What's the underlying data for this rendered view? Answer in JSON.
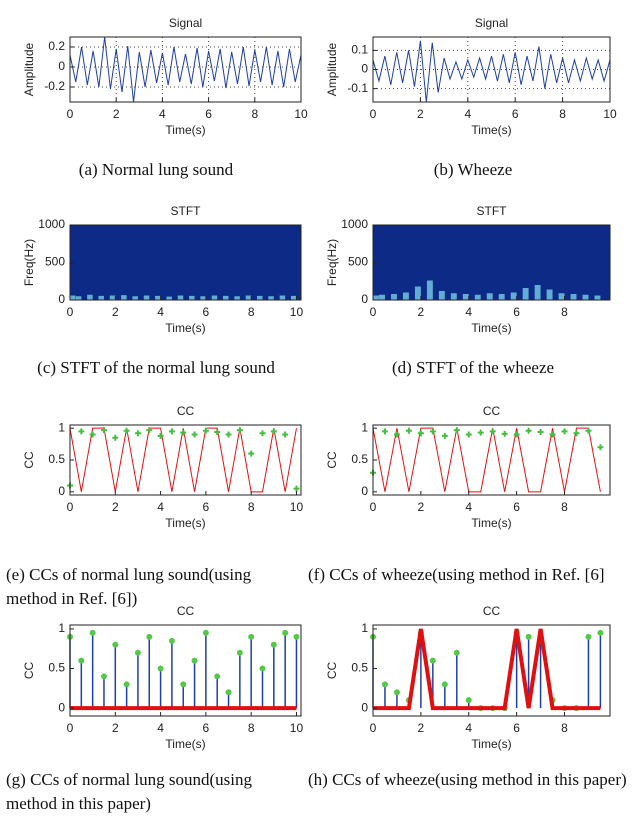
{
  "chart_data": [
    {
      "type": "line",
      "title": "Signal",
      "xlabel": "Time(s)",
      "ylabel": "Amplitude",
      "caption": "(a)  Normal lung sound",
      "x": [
        0,
        0.25,
        0.5,
        0.75,
        1,
        1.25,
        1.5,
        1.75,
        2,
        2.25,
        2.5,
        2.75,
        3,
        3.25,
        3.5,
        3.75,
        4,
        4.25,
        4.5,
        4.75,
        5,
        5.25,
        5.5,
        5.75,
        6,
        6.25,
        6.5,
        6.75,
        7,
        7.25,
        7.5,
        7.75,
        8,
        8.25,
        8.5,
        8.75,
        9,
        9.25,
        9.5,
        9.75,
        10
      ],
      "series": [
        {
          "color": "#1f3fa8",
          "style": "line",
          "values": [
            0.12,
            -0.15,
            0.2,
            -0.18,
            0.16,
            -0.2,
            0.3,
            -0.22,
            0.18,
            -0.25,
            0.21,
            -0.35,
            0.15,
            -0.2,
            0.17,
            -0.16,
            0.14,
            -0.18,
            0.2,
            -0.15,
            0.13,
            -0.17,
            0.19,
            -0.2,
            0.16,
            -0.14,
            0.18,
            -0.21,
            0.15,
            -0.17,
            0.2,
            -0.19,
            0.17,
            -0.15,
            0.2,
            -0.18,
            0.16,
            -0.2,
            0.18,
            -0.15,
            0.12
          ]
        }
      ],
      "xlim": [
        0,
        10
      ],
      "ylim": [
        -0.35,
        0.3
      ],
      "xticks": [
        0,
        2,
        4,
        6,
        8,
        10
      ],
      "yticks": [
        -0.2,
        0,
        0.2
      ],
      "grid": true
    },
    {
      "type": "line",
      "title": "Signal",
      "xlabel": "Time(s)",
      "ylabel": "Amplitude",
      "caption": "(b)  Wheeze",
      "x": [
        0,
        0.25,
        0.5,
        0.75,
        1,
        1.25,
        1.5,
        1.75,
        2,
        2.25,
        2.5,
        2.75,
        3,
        3.25,
        3.5,
        3.75,
        4,
        4.25,
        4.5,
        4.75,
        5,
        5.25,
        5.5,
        5.75,
        6,
        6.25,
        6.5,
        6.75,
        7,
        7.25,
        7.5,
        7.75,
        8,
        8.25,
        8.5,
        8.75,
        9,
        9.25,
        9.5,
        9.75,
        10
      ],
      "series": [
        {
          "color": "#1f3fa8",
          "style": "line",
          "values": [
            0.05,
            -0.06,
            0.07,
            -0.08,
            0.09,
            -0.07,
            0.1,
            -0.09,
            0.15,
            -0.17,
            0.14,
            -0.12,
            0.06,
            -0.05,
            0.04,
            -0.05,
            0.05,
            -0.04,
            0.06,
            -0.05,
            0.07,
            -0.06,
            0.08,
            -0.07,
            0.09,
            -0.08,
            0.07,
            -0.06,
            0.12,
            -0.1,
            0.08,
            -0.07,
            0.06,
            -0.07,
            0.05,
            -0.06,
            0.06,
            -0.05,
            0.05,
            -0.06,
            0.05
          ]
        }
      ],
      "xlim": [
        0,
        10
      ],
      "ylim": [
        -0.17,
        0.17
      ],
      "xticks": [
        0,
        2,
        4,
        6,
        8,
        10
      ],
      "yticks": [
        -0.1,
        0,
        0.1
      ],
      "grid": true
    },
    {
      "type": "spectrogram",
      "title": "STFT",
      "xlabel": "Time(s)",
      "ylabel": "Freq(Hz)",
      "caption": "(c)  STFT of the normal lung sound",
      "x": [
        0,
        0.5,
        1,
        1.5,
        2,
        2.5,
        3,
        3.5,
        4,
        4.5,
        5,
        5.5,
        6,
        6.5,
        7,
        7.5,
        8,
        8.5,
        9,
        9.5,
        10
      ],
      "background": "#0c2a86",
      "color": "#7fd8f0",
      "values": [
        60,
        50,
        70,
        55,
        60,
        65,
        50,
        60,
        55,
        45,
        60,
        55,
        50,
        60,
        55,
        50,
        60,
        55,
        50,
        60,
        55
      ],
      "xlim": [
        0,
        10.2
      ],
      "ylim": [
        0,
        1000
      ],
      "xticks": [
        0,
        2,
        4,
        6,
        8,
        10
      ],
      "yticks": [
        0,
        500,
        1000
      ],
      "grid": false
    },
    {
      "type": "spectrogram",
      "title": "STFT",
      "xlabel": "Time(s)",
      "ylabel": "Freq(Hz)",
      "caption": "(d)  STFT of the wheeze",
      "x": [
        0,
        0.5,
        1,
        1.5,
        2,
        2.5,
        3,
        3.5,
        4,
        4.5,
        5,
        5.5,
        6,
        6.5,
        7,
        7.5,
        8,
        8.5,
        9,
        9.5
      ],
      "background": "#0c2a86",
      "color": "#7fd8f0",
      "values": [
        60,
        70,
        80,
        100,
        180,
        260,
        120,
        90,
        80,
        70,
        90,
        80,
        100,
        160,
        200,
        140,
        90,
        80,
        70,
        60
      ],
      "xlim": [
        0,
        9.9
      ],
      "ylim": [
        0,
        1000
      ],
      "xticks": [
        0,
        2,
        4,
        6,
        8
      ],
      "yticks": [
        0,
        500,
        1000
      ],
      "grid": false
    },
    {
      "type": "line",
      "title": "CC",
      "xlabel": "Time(s)",
      "ylabel": "CC",
      "caption": "(e)  CCs of normal lung sound(using method in Ref.  [6])",
      "x": [
        0,
        0.5,
        1,
        1.5,
        2,
        2.5,
        3,
        3.5,
        4,
        4.5,
        5,
        5.5,
        6,
        6.5,
        7,
        7.5,
        8,
        8.5,
        9,
        9.5,
        10
      ],
      "series": [
        {
          "color": "#e01010",
          "style": "line",
          "values": [
            1,
            0,
            1,
            1,
            0,
            1,
            0,
            1,
            1,
            0,
            1,
            0,
            1,
            1,
            0,
            1,
            0,
            0,
            1,
            0,
            1
          ]
        },
        {
          "color": "#44c040",
          "style": "markers",
          "values": [
            0.1,
            0.95,
            0.9,
            0.97,
            0.85,
            0.96,
            0.92,
            0.97,
            0.88,
            0.95,
            0.93,
            0.9,
            0.96,
            0.94,
            0.9,
            0.97,
            0.6,
            0.92,
            0.95,
            0.9,
            0.05
          ]
        }
      ],
      "xlim": [
        0,
        10.2
      ],
      "ylim": [
        -0.05,
        1.05
      ],
      "xticks": [
        0,
        2,
        4,
        6,
        8,
        10
      ],
      "yticks": [
        0,
        0.5,
        1
      ],
      "grid": false
    },
    {
      "type": "line",
      "title": "CC",
      "xlabel": "Time(s)",
      "ylabel": "CC",
      "caption": "(f)  CCs of wheeze(using method in Ref.  [6]",
      "x": [
        0,
        0.5,
        1,
        1.5,
        2,
        2.5,
        3,
        3.5,
        4,
        4.5,
        5,
        5.5,
        6,
        6.5,
        7,
        7.5,
        8,
        8.5,
        9,
        9.5
      ],
      "series": [
        {
          "color": "#e01010",
          "style": "line",
          "values": [
            1,
            0,
            1,
            0,
            1,
            1,
            0,
            1,
            0,
            0,
            1,
            0,
            1,
            0,
            0,
            1,
            0,
            1,
            1,
            0
          ]
        },
        {
          "color": "#44c040",
          "style": "markers",
          "values": [
            0.3,
            0.95,
            0.9,
            0.96,
            0.92,
            0.95,
            0.88,
            0.97,
            0.9,
            0.93,
            0.95,
            0.91,
            0.9,
            0.96,
            0.94,
            0.9,
            0.95,
            0.92,
            0.96,
            0.7
          ]
        }
      ],
      "xlim": [
        0,
        9.9
      ],
      "ylim": [
        -0.05,
        1.05
      ],
      "xticks": [
        0,
        2,
        4,
        6,
        8
      ],
      "yticks": [
        0,
        0.5,
        1
      ],
      "grid": false
    },
    {
      "type": "line",
      "title": "CC",
      "xlabel": "Time(s)",
      "ylabel": "CC",
      "caption": "(g)  CCs of normal lung sound(using method in this paper)",
      "x": [
        0,
        0.5,
        1,
        1.5,
        2,
        2.5,
        3,
        3.5,
        4,
        4.5,
        5,
        5.5,
        6,
        6.5,
        7,
        7.5,
        8,
        8.5,
        9,
        9.5,
        10
      ],
      "series": [
        {
          "color": "#1f3fa8",
          "style": "stems",
          "marker_color": "#55c848",
          "values": [
            0.9,
            0.6,
            0.95,
            0.4,
            0.8,
            0.3,
            0.7,
            0.9,
            0.5,
            0.85,
            0.3,
            0.6,
            0.95,
            0.4,
            0.2,
            0.7,
            0.9,
            0.5,
            0.8,
            0.95,
            0.9
          ]
        },
        {
          "color": "#e01010",
          "style": "thick",
          "values": [
            0,
            0,
            0,
            0,
            0,
            0,
            0,
            0,
            0,
            0,
            0,
            0,
            0,
            0,
            0,
            0,
            0,
            0,
            0,
            0,
            0
          ]
        }
      ],
      "xlim": [
        0,
        10.2
      ],
      "ylim": [
        -0.1,
        1.05
      ],
      "xticks": [
        0,
        2,
        4,
        6,
        8,
        10
      ],
      "yticks": [
        0,
        0.5,
        1
      ],
      "grid": false
    },
    {
      "type": "line",
      "title": "CC",
      "xlabel": "Time(s)",
      "ylabel": "CC",
      "caption": "(h)  CCs of wheeze(using method in this paper)",
      "x": [
        0,
        0.5,
        1,
        1.5,
        2,
        2.5,
        3,
        3.5,
        4,
        4.5,
        5,
        5.5,
        6,
        6.5,
        7,
        7.5,
        8,
        8.5,
        9,
        9.5
      ],
      "series": [
        {
          "color": "#1f3fa8",
          "style": "stems",
          "marker_color": "#55c848",
          "values": [
            0.9,
            0.3,
            0.2,
            0.1,
            0.95,
            0.6,
            0.3,
            0.7,
            0.1,
            0,
            0,
            0,
            0.95,
            0.9,
            0.85,
            0.1,
            0,
            0,
            0.9,
            0.95
          ]
        },
        {
          "color": "#e01010",
          "style": "thick",
          "values": [
            0,
            0,
            0,
            0,
            1,
            0,
            0,
            0,
            0,
            0,
            0,
            0,
            1,
            0,
            1,
            0,
            0,
            0,
            0,
            0
          ]
        }
      ],
      "xlim": [
        0,
        9.9
      ],
      "ylim": [
        -0.1,
        1.05
      ],
      "xticks": [
        0,
        2,
        4,
        6,
        8
      ],
      "yticks": [
        0,
        0.5,
        1
      ],
      "grid": false
    }
  ]
}
